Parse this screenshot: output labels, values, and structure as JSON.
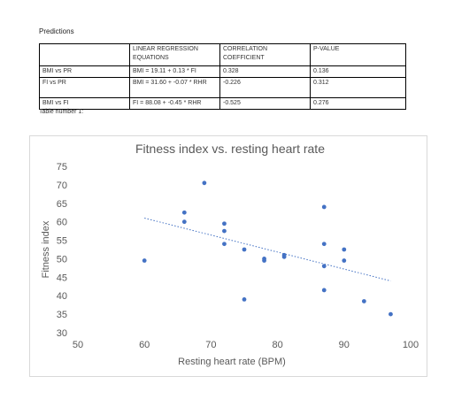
{
  "heading": "Predictions",
  "table": {
    "headers": [
      "",
      "LINEAR REGRESSION EQUATIONS",
      "CORRELATION COEFFICIENT",
      "P-VALUE"
    ],
    "rows": [
      [
        "BMI vs PR",
        "BMI = 19.11 + 0.13 * FI",
        "0.328",
        "0.136"
      ],
      [
        "FI vs PR",
        "BMI = 31.60 + -0.07 * RHR",
        "-0.226",
        "0.312"
      ],
      [
        "BMI vs FI",
        "FI = 88.08 + -0.45 * RHR",
        "-0.525",
        "0.276"
      ]
    ]
  },
  "caption": "Table number 1:",
  "chart_data": {
    "type": "scatter",
    "title": "Fitness index vs. resting heart rate",
    "xlabel": "Resting heart rate (BPM)",
    "ylabel": "Fitness index",
    "xlim": [
      50,
      100
    ],
    "ylim": [
      30,
      75
    ],
    "xticks": [
      50,
      60,
      70,
      80,
      90,
      100
    ],
    "yticks": [
      30,
      35,
      40,
      45,
      50,
      55,
      60,
      65,
      70,
      75
    ],
    "point_color": "#4472c4",
    "trendline": {
      "style": "dotted",
      "color": "#4472c4",
      "x": [
        60,
        97
      ],
      "y": [
        61,
        44
      ]
    },
    "points": [
      {
        "x": 60,
        "y": 49.5
      },
      {
        "x": 66,
        "y": 62.5
      },
      {
        "x": 66,
        "y": 60
      },
      {
        "x": 69,
        "y": 70.5
      },
      {
        "x": 72,
        "y": 59.5
      },
      {
        "x": 72,
        "y": 57.5
      },
      {
        "x": 72,
        "y": 54
      },
      {
        "x": 75,
        "y": 52.5
      },
      {
        "x": 75,
        "y": 39
      },
      {
        "x": 78,
        "y": 50
      },
      {
        "x": 78,
        "y": 49.5
      },
      {
        "x": 81,
        "y": 51
      },
      {
        "x": 81,
        "y": 50.5
      },
      {
        "x": 87,
        "y": 64
      },
      {
        "x": 87,
        "y": 54
      },
      {
        "x": 87,
        "y": 48
      },
      {
        "x": 87,
        "y": 41.5
      },
      {
        "x": 90,
        "y": 52.5
      },
      {
        "x": 90,
        "y": 49.5
      },
      {
        "x": 93,
        "y": 38.5
      },
      {
        "x": 97,
        "y": 35
      }
    ]
  }
}
